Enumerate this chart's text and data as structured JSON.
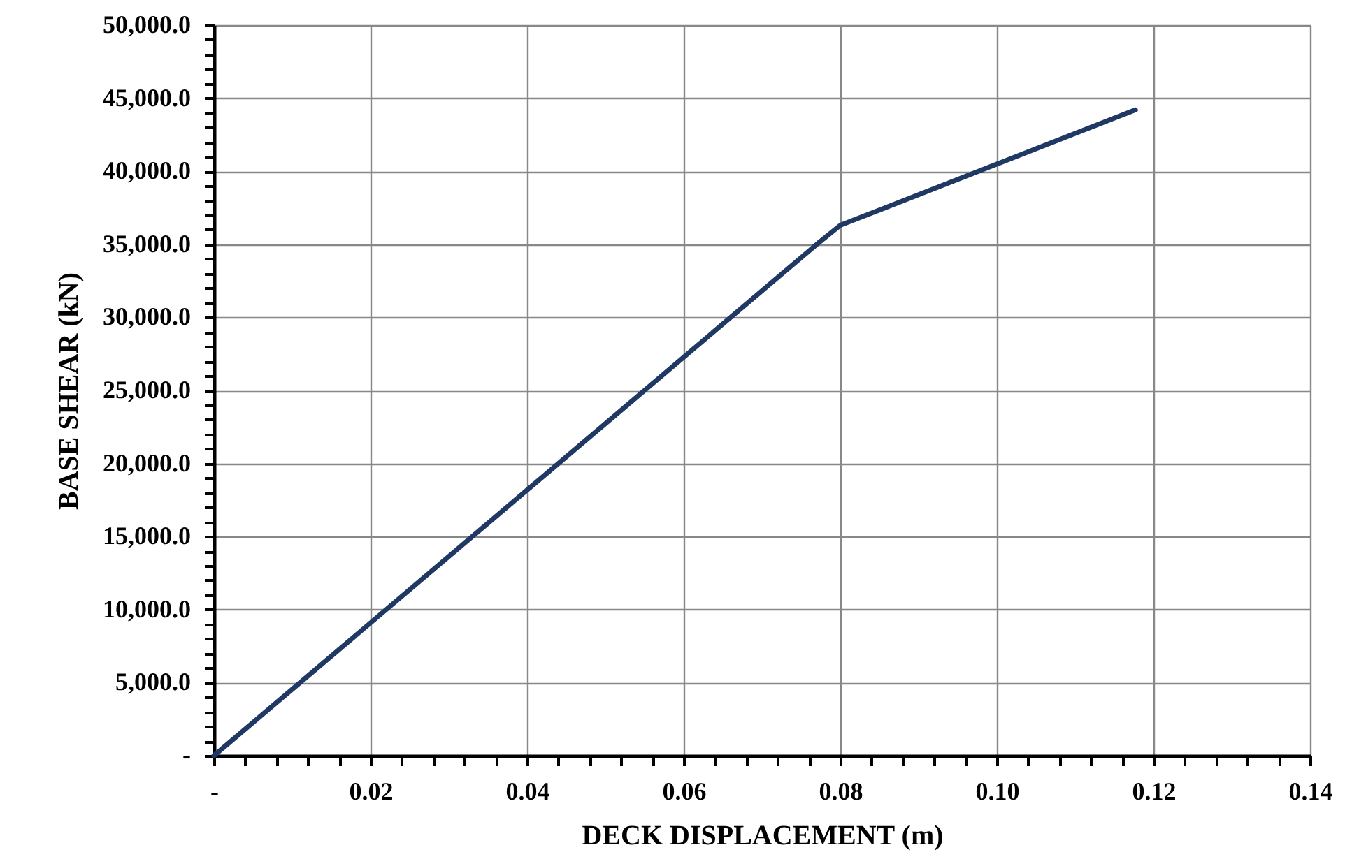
{
  "chart_data": {
    "type": "line",
    "xlabel": "DECK DISPLACEMENT (m)",
    "ylabel": "BASE SHEAR (kN)",
    "x": [
      0,
      0.077,
      0.08,
      0.1177
    ],
    "series": [
      {
        "color": "#203864",
        "values": [
          0,
          35000,
          36300,
          44200
        ]
      }
    ],
    "xlim": [
      0,
      0.14
    ],
    "ylim": [
      0,
      50000
    ],
    "xticks": [
      {
        "value": 0,
        "label": "-"
      },
      {
        "value": 0.004,
        "label": null
      },
      {
        "value": 0.008,
        "label": null
      },
      {
        "value": 0.012,
        "label": null
      },
      {
        "value": 0.016,
        "label": null
      },
      {
        "value": 0.02,
        "label": "0.02"
      },
      {
        "value": 0.024,
        "label": null
      },
      {
        "value": 0.028,
        "label": null
      },
      {
        "value": 0.032,
        "label": null
      },
      {
        "value": 0.036,
        "label": null
      },
      {
        "value": 0.04,
        "label": "0.04"
      },
      {
        "value": 0.044,
        "label": null
      },
      {
        "value": 0.048,
        "label": null
      },
      {
        "value": 0.052,
        "label": null
      },
      {
        "value": 0.056,
        "label": null
      },
      {
        "value": 0.06,
        "label": "0.06"
      },
      {
        "value": 0.064,
        "label": null
      },
      {
        "value": 0.068,
        "label": null
      },
      {
        "value": 0.072,
        "label": null
      },
      {
        "value": 0.076,
        "label": null
      },
      {
        "value": 0.08,
        "label": "0.08"
      },
      {
        "value": 0.084,
        "label": null
      },
      {
        "value": 0.088,
        "label": null
      },
      {
        "value": 0.092,
        "label": null
      },
      {
        "value": 0.096,
        "label": null
      },
      {
        "value": 0.1,
        "label": "0.10"
      },
      {
        "value": 0.104,
        "label": null
      },
      {
        "value": 0.108,
        "label": null
      },
      {
        "value": 0.112,
        "label": null
      },
      {
        "value": 0.116,
        "label": null
      },
      {
        "value": 0.12,
        "label": "0.12"
      },
      {
        "value": 0.124,
        "label": null
      },
      {
        "value": 0.128,
        "label": null
      },
      {
        "value": 0.132,
        "label": null
      },
      {
        "value": 0.136,
        "label": null
      },
      {
        "value": 0.14,
        "label": "0.14"
      }
    ],
    "yticks": [
      {
        "value": 0,
        "label": "-"
      },
      {
        "value": 1000,
        "label": null
      },
      {
        "value": 2000,
        "label": null
      },
      {
        "value": 3000,
        "label": null
      },
      {
        "value": 4000,
        "label": null
      },
      {
        "value": 5000,
        "label": "5,000.0"
      },
      {
        "value": 6000,
        "label": null
      },
      {
        "value": 7000,
        "label": null
      },
      {
        "value": 8000,
        "label": null
      },
      {
        "value": 9000,
        "label": null
      },
      {
        "value": 10000,
        "label": "10,000.0"
      },
      {
        "value": 11000,
        "label": null
      },
      {
        "value": 12000,
        "label": null
      },
      {
        "value": 13000,
        "label": null
      },
      {
        "value": 14000,
        "label": null
      },
      {
        "value": 15000,
        "label": "15,000.0"
      },
      {
        "value": 16000,
        "label": null
      },
      {
        "value": 17000,
        "label": null
      },
      {
        "value": 18000,
        "label": null
      },
      {
        "value": 19000,
        "label": null
      },
      {
        "value": 20000,
        "label": "20,000.0"
      },
      {
        "value": 21000,
        "label": null
      },
      {
        "value": 22000,
        "label": null
      },
      {
        "value": 23000,
        "label": null
      },
      {
        "value": 24000,
        "label": null
      },
      {
        "value": 25000,
        "label": "25,000.0"
      },
      {
        "value": 26000,
        "label": null
      },
      {
        "value": 27000,
        "label": null
      },
      {
        "value": 28000,
        "label": null
      },
      {
        "value": 29000,
        "label": null
      },
      {
        "value": 30000,
        "label": "30,000.0"
      },
      {
        "value": 31000,
        "label": null
      },
      {
        "value": 32000,
        "label": null
      },
      {
        "value": 33000,
        "label": null
      },
      {
        "value": 34000,
        "label": null
      },
      {
        "value": 35000,
        "label": "35,000.0"
      },
      {
        "value": 36000,
        "label": null
      },
      {
        "value": 37000,
        "label": null
      },
      {
        "value": 38000,
        "label": null
      },
      {
        "value": 39000,
        "label": null
      },
      {
        "value": 40000,
        "label": "40,000.0"
      },
      {
        "value": 41000,
        "label": null
      },
      {
        "value": 42000,
        "label": null
      },
      {
        "value": 43000,
        "label": null
      },
      {
        "value": 44000,
        "label": null
      },
      {
        "value": 45000,
        "label": "45,000.0"
      },
      {
        "value": 46000,
        "label": null
      },
      {
        "value": 47000,
        "label": null
      },
      {
        "value": 48000,
        "label": null
      },
      {
        "value": 49000,
        "label": null
      },
      {
        "value": 50000,
        "label": "50,000.0"
      }
    ],
    "grid": true,
    "line_style": "solid"
  }
}
